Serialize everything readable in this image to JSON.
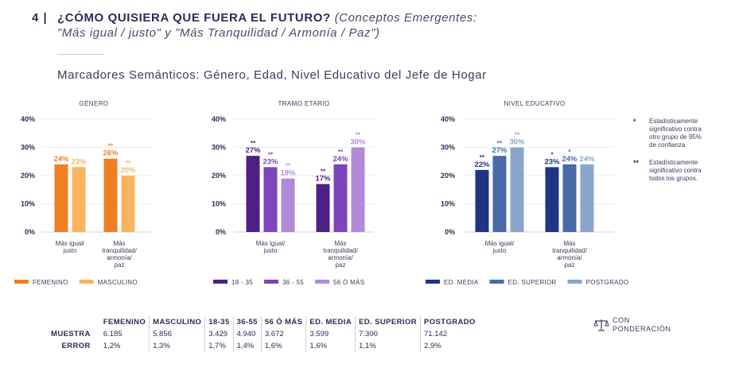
{
  "header": {
    "number": "4 |",
    "title": "¿CÓMO QUISIERA QUE FUERA EL FUTURO?",
    "subtitle_part1": "(Conceptos Emergentes:",
    "subtitle_part2": "\"Más igual / justo\" y \"Más Tranquilidad / Armonía / Paz\")",
    "section": "Marcadores Semánticos: Género, Edad, Nivel Educativo del Jefe de Hogar"
  },
  "notes": [
    {
      "stars": "*",
      "text": [
        "Estadísticamente",
        "significativo contra",
        "otro grupo de 95%",
        "de confianza"
      ]
    },
    {
      "stars": "**",
      "text": [
        "Estadísticamente",
        "significativo contra",
        "todos los grupos."
      ]
    }
  ],
  "chart_data": [
    {
      "type": "bar",
      "title": "GÉNERO",
      "ylim": [
        0,
        40
      ],
      "yticks": [
        "40%",
        "30%",
        "20%",
        "10%",
        "0%"
      ],
      "categories": [
        [
          "Más igual/",
          "justo"
        ],
        [
          "Más",
          "tranquilidad/",
          "armonía/",
          "paz"
        ]
      ],
      "series": [
        {
          "name": "FEMENINO",
          "color": "#ee7f22",
          "values": [
            24,
            26
          ],
          "labels": [
            "24%",
            "26%"
          ],
          "stars": [
            "",
            "**"
          ]
        },
        {
          "name": "MASCULINO",
          "color": "#fbb45e",
          "values": [
            23,
            20
          ],
          "labels": [
            "23%",
            "20%"
          ],
          "stars": [
            "",
            "**"
          ]
        }
      ]
    },
    {
      "type": "bar",
      "title": "TRAMO ETARIO",
      "ylim": [
        0,
        40
      ],
      "yticks": [
        "40%",
        "30%",
        "20%",
        "10%",
        "0%"
      ],
      "categories": [
        [
          "Más igual/",
          "justo"
        ],
        [
          "Más",
          "tranquilidad/",
          "armonía/",
          "paz"
        ]
      ],
      "series": [
        {
          "name": "18 - 35",
          "color": "#4e2085",
          "values": [
            27,
            17
          ],
          "labels": [
            "27%",
            "17%"
          ],
          "stars": [
            "**",
            "**"
          ]
        },
        {
          "name": "36 - 55",
          "color": "#7d44bb",
          "values": [
            23,
            24
          ],
          "labels": [
            "23%",
            "24%"
          ],
          "stars": [
            "**",
            "**"
          ]
        },
        {
          "name": "56 Ó MÁS",
          "color": "#b08ad8",
          "values": [
            19,
            30
          ],
          "labels": [
            "19%",
            "30%"
          ],
          "stars": [
            "**",
            "**"
          ]
        }
      ]
    },
    {
      "type": "bar",
      "title": "NIVEL EDUCATIVO",
      "ylim": [
        0,
        40
      ],
      "yticks": [
        "40%",
        "30%",
        "20%",
        "10%",
        "0%"
      ],
      "categories": [
        [
          "Más igual/",
          "justo"
        ],
        [
          "Más",
          "tranquilidad/",
          "armonía/",
          "paz"
        ]
      ],
      "series": [
        {
          "name": "ED. MEDIA",
          "color": "#1f3583",
          "values": [
            22,
            23
          ],
          "labels": [
            "22%",
            "23%"
          ],
          "stars": [
            "**",
            "*"
          ]
        },
        {
          "name": "ED. SUPERIOR",
          "color": "#4a6aa6",
          "values": [
            27,
            24
          ],
          "labels": [
            "27%",
            "24%"
          ],
          "stars": [
            "**",
            "*"
          ]
        },
        {
          "name": "POSTGRADO",
          "color": "#8aa4cc",
          "values": [
            30,
            24
          ],
          "labels": [
            "30%",
            "24%"
          ],
          "stars": [
            "**",
            ""
          ]
        }
      ]
    }
  ],
  "table": {
    "headers": [
      "FEMENINO",
      "MASCULINO",
      "18-35",
      "36-55",
      "56 Ó MÁS",
      "ED. MEDIA",
      "ED. SUPERIOR",
      "POSTGRADO"
    ],
    "rows": [
      {
        "label": "MUESTRA",
        "values": [
          "6.185",
          "5.856",
          "3.429",
          "4.940",
          "3.672",
          "3.599",
          "7.300",
          "71.142"
        ]
      },
      {
        "label": "ERROR",
        "values": [
          "1,2%",
          "1,3%",
          "1,7%",
          "1,4%",
          "1,6%",
          "1,6%",
          "1,1%",
          "2,9%"
        ]
      }
    ]
  },
  "weight": {
    "line1": "CON",
    "line2": "PONDERACIÓN",
    "icon": "scale-icon"
  }
}
